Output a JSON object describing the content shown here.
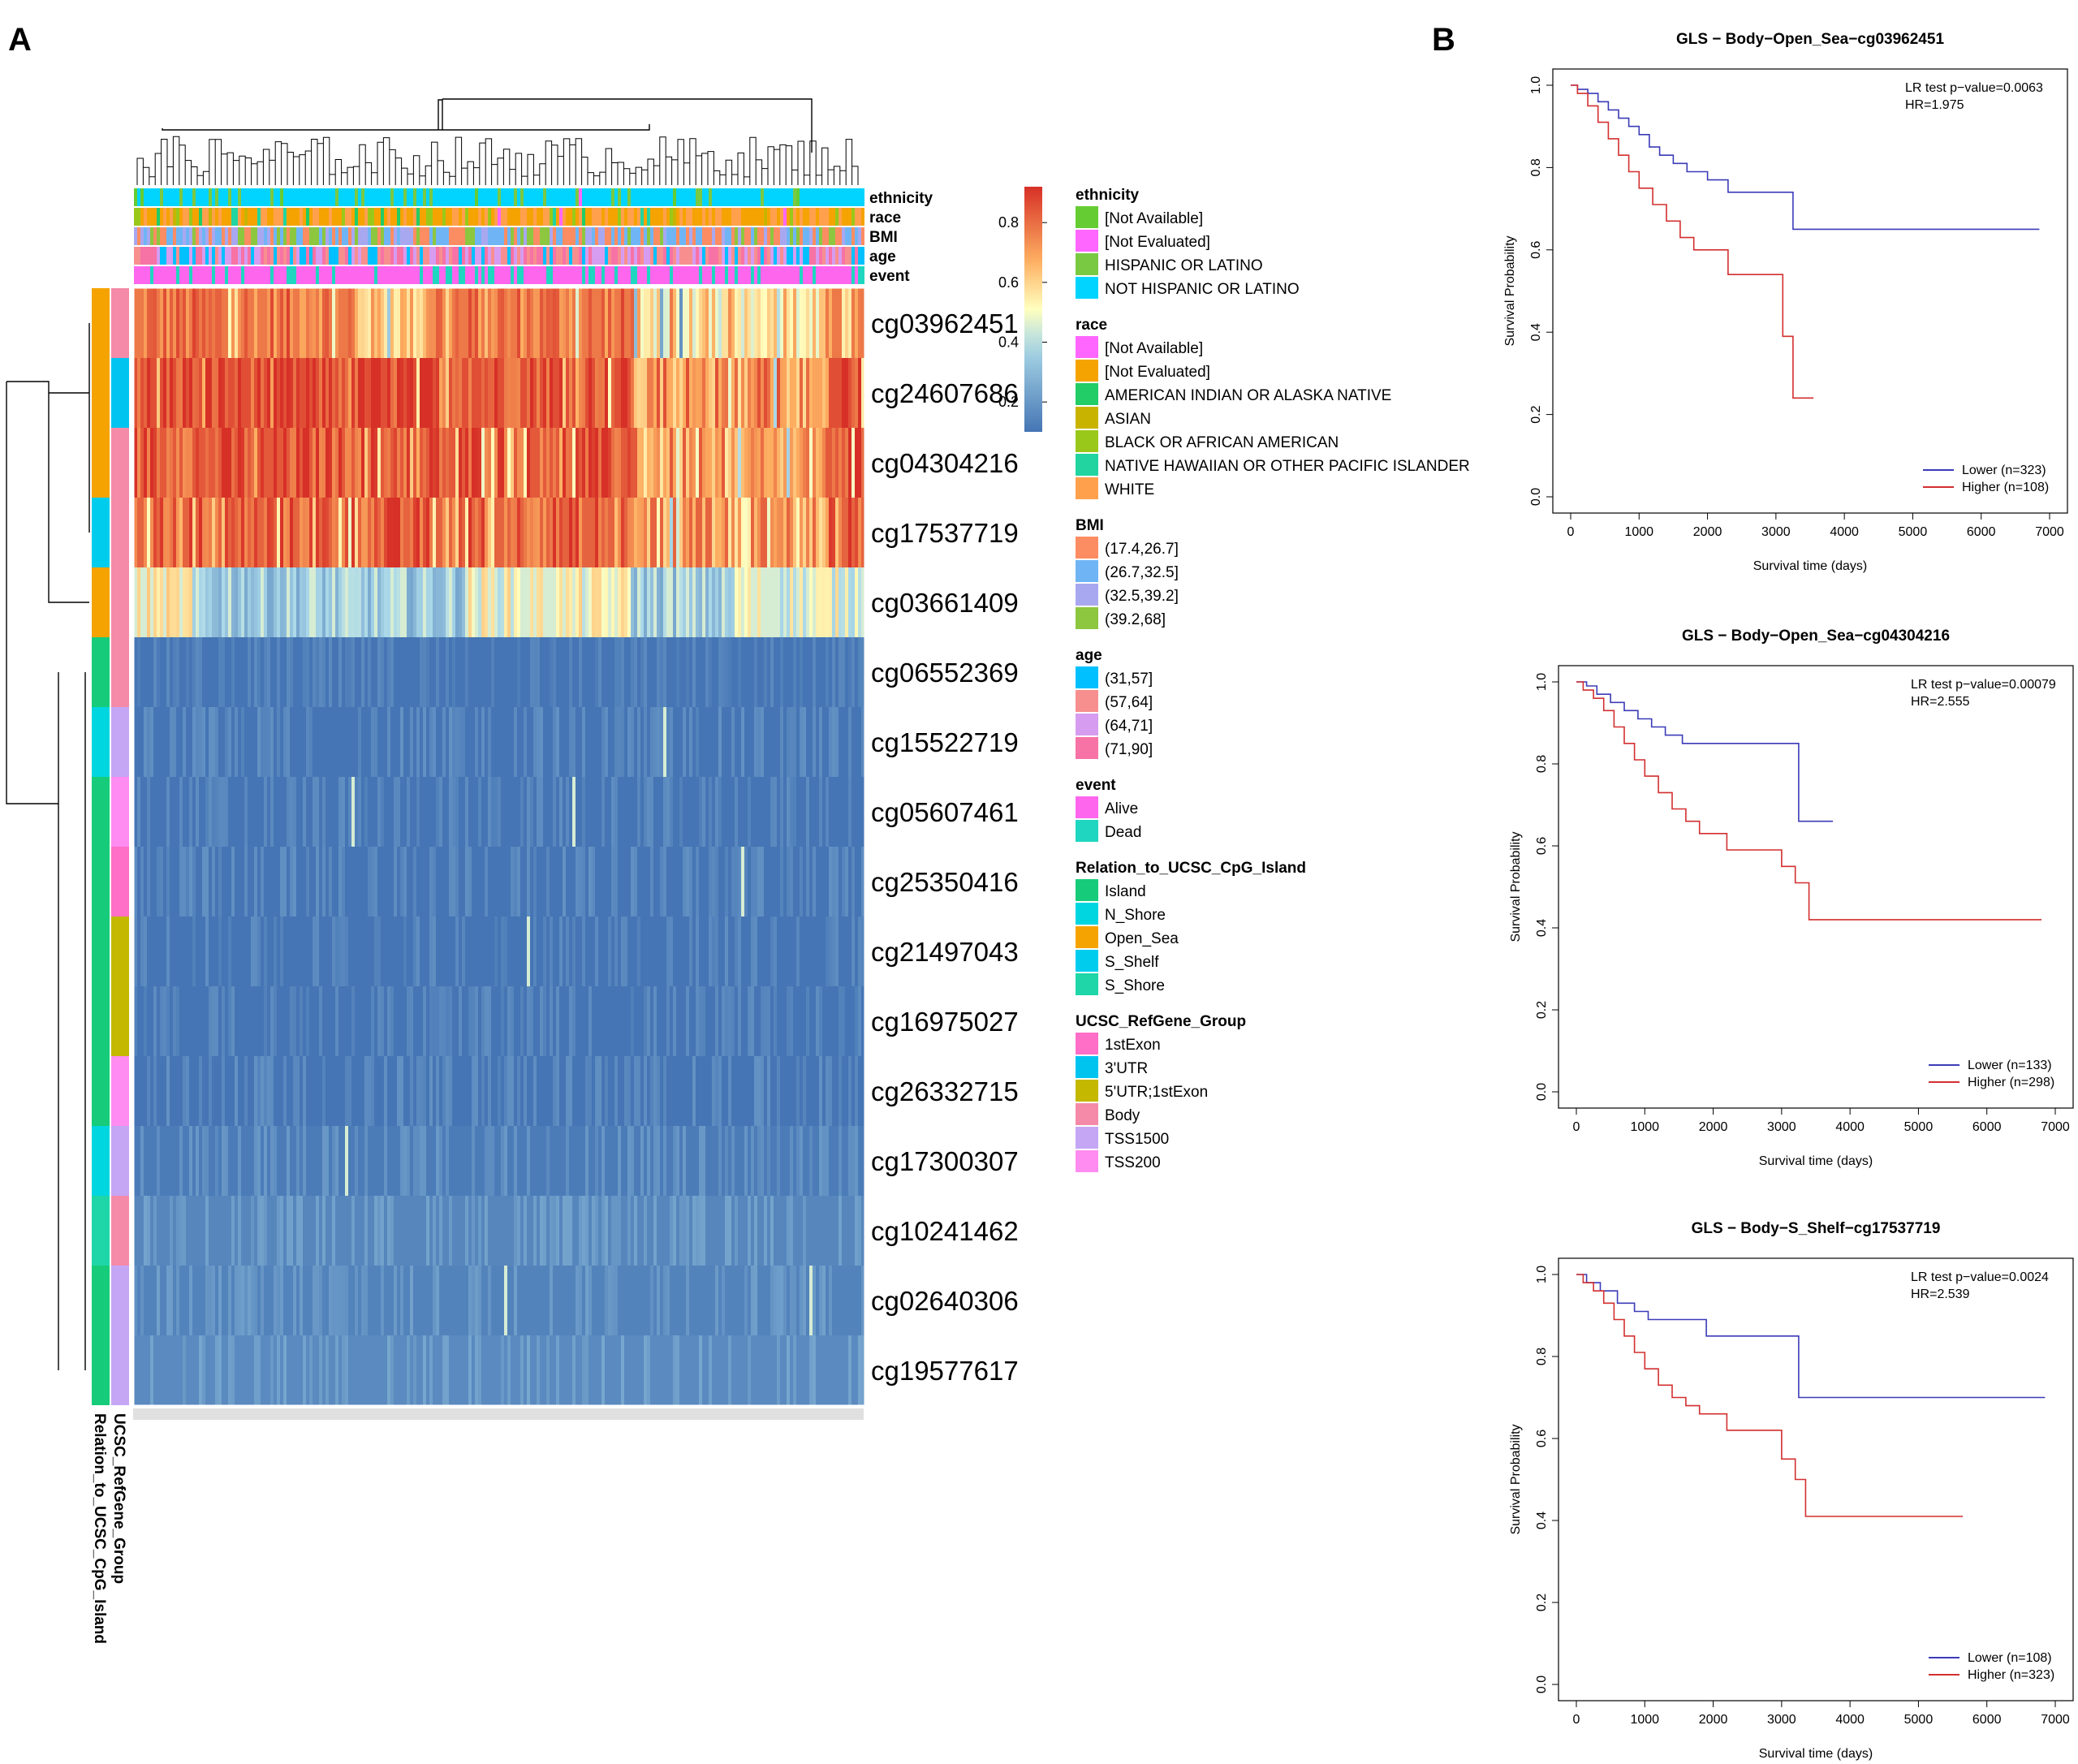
{
  "panels": {
    "a": "A",
    "b": "B"
  },
  "colors": {
    "heat_low": "#4575b4",
    "heat_mid": "#ffffbf",
    "heat_high": "#d73027",
    "km_lower": "#3b3bb8",
    "km_higher": "#d32f2f"
  },
  "heatmap": {
    "probes": [
      "cg03962451",
      "cg24607686",
      "cg04304216",
      "cg17537719",
      "cg03661409",
      "cg06552369",
      "cg15522719",
      "cg05607461",
      "cg25350416",
      "cg21497043",
      "cg16975027",
      "cg26332715",
      "cg17300307",
      "cg10241462",
      "cg02640306",
      "cg19577617"
    ],
    "relation_to_island": [
      "Open_Sea",
      "Open_Sea",
      "Open_Sea",
      "S_Shelf",
      "Open_Sea",
      "Island",
      "N_Shore",
      "Island",
      "Island",
      "Island",
      "Island",
      "Island",
      "N_Shore",
      "S_Shore",
      "Island",
      "Island"
    ],
    "refgene_group": [
      "Body",
      "3'UTR",
      "Body",
      "Body",
      "Body",
      "Body",
      "TSS1500",
      "TSS200",
      "1stExon",
      "5'UTR;1stExon",
      "5'UTR;1stExon",
      "TSS200",
      "TSS1500",
      "Body",
      "TSS1500",
      "TSS1500"
    ],
    "mean_beta": [
      0.78,
      0.86,
      0.84,
      0.82,
      0.45,
      0.08,
      0.1,
      0.09,
      0.1,
      0.09,
      0.09,
      0.1,
      0.12,
      0.15,
      0.14,
      0.16
    ],
    "annotation_rows": [
      "ethnicity",
      "race",
      "BMI",
      "age",
      "event"
    ],
    "side_labels": [
      "UCSC_RefGene_Group",
      "Relation_to_UCSC_CpG_Island"
    ],
    "colorbar": {
      "ticks": [
        0.2,
        0.4,
        0.6,
        0.8
      ],
      "tick_labels": [
        "0.2",
        "0.4",
        "0.6",
        "0.8"
      ],
      "range": [
        0.1,
        0.92
      ]
    }
  },
  "legend": [
    {
      "title": "ethnicity",
      "items": [
        {
          "label": "[Not Available]",
          "color": "#66cc33"
        },
        {
          "label": "[Not Evaluated]",
          "color": "#ff66ff"
        },
        {
          "label": "HISPANIC OR LATINO",
          "color": "#7ac943"
        },
        {
          "label": "NOT HISPANIC OR LATINO",
          "color": "#00d4ff"
        }
      ]
    },
    {
      "title": "race",
      "items": [
        {
          "label": "[Not Available]",
          "color": "#ff66ff"
        },
        {
          "label": "[Not Evaluated]",
          "color": "#f5a300"
        },
        {
          "label": "AMERICAN INDIAN OR ALASKA NATIVE",
          "color": "#22cc66"
        },
        {
          "label": "ASIAN",
          "color": "#c8b400"
        },
        {
          "label": "BLACK OR AFRICAN AMERICAN",
          "color": "#9ac81a"
        },
        {
          "label": "NATIVE HAWAIIAN OR OTHER PACIFIC ISLANDER",
          "color": "#22d4a0"
        },
        {
          "label": "WHITE",
          "color": "#ffa04d"
        }
      ]
    },
    {
      "title": "BMI",
      "items": [
        {
          "label": "(17.4,26.7]",
          "color": "#fc8d62"
        },
        {
          "label": "(26.7,32.5]",
          "color": "#6fb5f5"
        },
        {
          "label": "(32.5,39.2]",
          "color": "#a8a8f0"
        },
        {
          "label": "(39.2,68]",
          "color": "#8dc63f"
        }
      ]
    },
    {
      "title": "age",
      "items": [
        {
          "label": "(31,57]",
          "color": "#00c0ff"
        },
        {
          "label": "(57,64]",
          "color": "#f78f8f"
        },
        {
          "label": "(64,71]",
          "color": "#d69cf0"
        },
        {
          "label": "(71,90]",
          "color": "#f772a5"
        }
      ]
    },
    {
      "title": "event",
      "items": [
        {
          "label": "Alive",
          "color": "#ff66ee"
        },
        {
          "label": "Dead",
          "color": "#1fd6c0"
        }
      ]
    },
    {
      "title": "Relation_to_UCSC_CpG_Island",
      "items": [
        {
          "label": "Island",
          "color": "#16cc7a"
        },
        {
          "label": "N_Shore",
          "color": "#00d6e0"
        },
        {
          "label": "Open_Sea",
          "color": "#f5a300"
        },
        {
          "label": "S_Shelf",
          "color": "#00ccee"
        },
        {
          "label": "S_Shore",
          "color": "#1fd6a8"
        }
      ]
    },
    {
      "title": "UCSC_RefGene_Group",
      "items": [
        {
          "label": "1stExon",
          "color": "#ff6ec7"
        },
        {
          "label": "3'UTR",
          "color": "#00c4f0"
        },
        {
          "label": "5'UTR;1stExon",
          "color": "#c4b800"
        },
        {
          "label": "Body",
          "color": "#f58aa8"
        },
        {
          "label": "TSS1500",
          "color": "#c4a6f5"
        },
        {
          "label": "TSS200",
          "color": "#ff8cf0"
        }
      ]
    }
  ],
  "chart_data": [
    {
      "type": "line",
      "title": "GLS − Body−Open_Sea−cg03962451",
      "xlabel": "Survival time (days)",
      "ylabel": "Survival Probability",
      "xlim": [
        0,
        7000
      ],
      "ylim": [
        0,
        1
      ],
      "xticks": [
        0,
        1000,
        2000,
        3000,
        4000,
        5000,
        6000,
        7000
      ],
      "yticks": [
        0.0,
        0.2,
        0.4,
        0.6,
        0.8,
        1.0
      ],
      "annotation": [
        "LR test p−value=0.0063",
        "HR=1.975"
      ],
      "legend_position": "bottom-right",
      "series": [
        {
          "name": "Lower (n=323)",
          "x": [
            0,
            100,
            250,
            400,
            550,
            700,
            850,
            1000,
            1150,
            1300,
            1500,
            1700,
            2000,
            2300,
            3200,
            3250,
            6850
          ],
          "y": [
            1.0,
            0.99,
            0.98,
            0.96,
            0.94,
            0.92,
            0.9,
            0.88,
            0.85,
            0.83,
            0.81,
            0.79,
            0.77,
            0.74,
            0.74,
            0.65,
            0.65
          ]
        },
        {
          "name": "Higher (n=108)",
          "x": [
            0,
            100,
            250,
            400,
            550,
            700,
            850,
            1000,
            1200,
            1400,
            1600,
            1800,
            2300,
            3100,
            3250,
            3400,
            3550
          ],
          "y": [
            1.0,
            0.98,
            0.95,
            0.91,
            0.87,
            0.83,
            0.79,
            0.75,
            0.71,
            0.67,
            0.63,
            0.6,
            0.54,
            0.39,
            0.24,
            0.24,
            0.24
          ]
        }
      ]
    },
    {
      "type": "line",
      "title": "GLS − Body−Open_Sea−cg04304216",
      "xlabel": "Survival time (days)",
      "ylabel": "Survival Probability",
      "xlim": [
        0,
        7000
      ],
      "ylim": [
        0,
        1
      ],
      "xticks": [
        0,
        1000,
        2000,
        3000,
        4000,
        5000,
        6000,
        7000
      ],
      "yticks": [
        0.0,
        0.2,
        0.4,
        0.6,
        0.8,
        1.0
      ],
      "annotation": [
        "LR test p−value=0.00079",
        "HR=2.555"
      ],
      "legend_position": "bottom-right",
      "series": [
        {
          "name": "Lower (n=133)",
          "x": [
            0,
            150,
            300,
            500,
            700,
            900,
            1100,
            1300,
            1550,
            3250,
            3750
          ],
          "y": [
            1.0,
            0.99,
            0.97,
            0.95,
            0.93,
            0.91,
            0.89,
            0.87,
            0.85,
            0.66,
            0.66
          ]
        },
        {
          "name": "Higher (n=298)",
          "x": [
            0,
            100,
            250,
            400,
            550,
            700,
            850,
            1000,
            1200,
            1400,
            1600,
            1800,
            2200,
            3000,
            3200,
            3400,
            6800
          ],
          "y": [
            1.0,
            0.98,
            0.96,
            0.93,
            0.89,
            0.85,
            0.81,
            0.77,
            0.73,
            0.69,
            0.66,
            0.63,
            0.59,
            0.55,
            0.51,
            0.42,
            0.42
          ]
        }
      ]
    },
    {
      "type": "line",
      "title": "GLS − Body−S_Shelf−cg17537719",
      "xlabel": "Survival time (days)",
      "ylabel": "Survival Probability",
      "xlim": [
        0,
        7000
      ],
      "ylim": [
        0,
        1
      ],
      "xticks": [
        0,
        1000,
        2000,
        3000,
        4000,
        5000,
        6000,
        7000
      ],
      "yticks": [
        0.0,
        0.2,
        0.4,
        0.6,
        0.8,
        1.0
      ],
      "annotation": [
        "LR test p−value=0.0024",
        "HR=2.539"
      ],
      "legend_position": "bottom-right",
      "series": [
        {
          "name": "Lower (n=108)",
          "x": [
            0,
            150,
            350,
            600,
            850,
            1050,
            1900,
            3250,
            6850
          ],
          "y": [
            1.0,
            0.98,
            0.96,
            0.93,
            0.91,
            0.89,
            0.85,
            0.7,
            0.7
          ]
        },
        {
          "name": "Higher (n=323)",
          "x": [
            0,
            100,
            250,
            400,
            550,
            700,
            850,
            1000,
            1200,
            1400,
            1600,
            1800,
            2200,
            3000,
            3200,
            3350,
            5650
          ],
          "y": [
            1.0,
            0.98,
            0.96,
            0.93,
            0.89,
            0.85,
            0.81,
            0.77,
            0.73,
            0.7,
            0.68,
            0.66,
            0.62,
            0.55,
            0.5,
            0.41,
            0.41
          ]
        }
      ]
    }
  ]
}
